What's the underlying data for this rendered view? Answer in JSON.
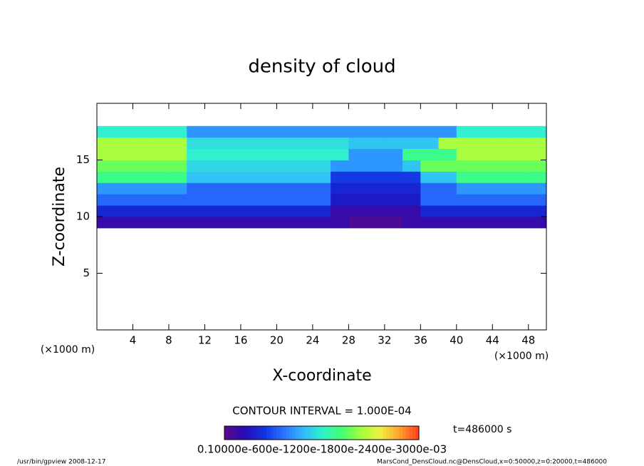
{
  "chart_data": {
    "type": "heatmap",
    "title": "density of cloud",
    "x_label": "X-coordinate",
    "y_label": "Z-coordinate",
    "x_unit": "(×1000 m)",
    "y_unit": "(×1000 m)",
    "contour_interval": "CONTOUR INTERVAL = 1.000E-04",
    "time_label": "t=486000 s",
    "footer_left": "/usr/bin/gpview   2008-12-17",
    "footer_right": "MarsCond_DensCloud.nc@DensCloud,x=0:50000,z=0:20000,t=486000",
    "colorbar_label": "0.10000e-600e-1200e-1800e-2400e-3000e-03",
    "xlim": [
      0,
      50
    ],
    "xticks": [
      4,
      8,
      12,
      16,
      20,
      24,
      28,
      32,
      36,
      40,
      44,
      48
    ],
    "ylim": [
      0,
      20
    ],
    "yticks": [
      5,
      10,
      15
    ],
    "clim": [
      0,
      0.0007
    ],
    "colors": [
      "#5a0a8c",
      "#2a0ab4",
      "#1030e0",
      "#2a70ff",
      "#30b4ff",
      "#30f0d0",
      "#40ff70",
      "#a0ff40",
      "#f0f040",
      "#ffa030",
      "#ff4020"
    ],
    "x_edges": [
      0,
      2,
      4,
      6,
      8,
      10,
      12,
      14,
      16,
      18,
      20,
      22,
      24,
      26,
      28,
      30,
      32,
      34,
      36,
      38,
      40,
      42,
      44,
      46,
      48,
      50
    ],
    "z_edges": [
      9,
      10,
      11,
      12,
      13,
      14,
      15,
      16,
      17,
      18
    ],
    "values": [
      [
        5e-05,
        5e-05,
        5e-05,
        5e-05,
        5e-05,
        5e-05,
        5e-05,
        5e-05,
        5e-05,
        5e-05,
        5e-05,
        5e-05,
        5e-05,
        5e-05,
        2e-05,
        2e-05,
        2e-05,
        5e-05,
        5e-05,
        5e-05,
        5e-05,
        5e-05,
        5e-05,
        5e-05,
        5e-05
      ],
      [
        0.00012,
        0.00012,
        0.00012,
        0.00012,
        0.00012,
        0.00012,
        0.00012,
        0.00012,
        0.00012,
        0.00012,
        0.00012,
        0.00012,
        0.00012,
        5e-05,
        5e-05,
        5e-05,
        5e-05,
        5e-05,
        0.00012,
        0.00012,
        0.00012,
        0.00012,
        0.00012,
        0.00012,
        0.00012
      ],
      [
        0.0002,
        0.0002,
        0.0002,
        0.0002,
        0.0002,
        0.0002,
        0.0002,
        0.0002,
        0.0002,
        0.0002,
        0.0002,
        0.0002,
        0.0002,
        0.0001,
        0.0001,
        0.0001,
        0.0001,
        0.0001,
        0.0002,
        0.0002,
        0.0002,
        0.0002,
        0.0002,
        0.0002,
        0.0002
      ],
      [
        0.00025,
        0.00025,
        0.00025,
        0.00025,
        0.00025,
        0.0002,
        0.0002,
        0.0002,
        0.0002,
        0.0002,
        0.0002,
        0.0002,
        0.0002,
        0.00012,
        0.00012,
        0.00012,
        0.00012,
        0.00012,
        0.0002,
        0.0002,
        0.00025,
        0.00025,
        0.00025,
        0.00025,
        0.00025
      ],
      [
        0.0004,
        0.0004,
        0.0004,
        0.0004,
        0.0004,
        0.0003,
        0.0003,
        0.0003,
        0.0003,
        0.0003,
        0.0003,
        0.0003,
        0.0003,
        0.00015,
        0.00015,
        0.00015,
        0.00015,
        0.00015,
        0.0003,
        0.0003,
        0.0004,
        0.0004,
        0.0004,
        0.0004,
        0.0004
      ],
      [
        0.00045,
        0.00045,
        0.00045,
        0.00045,
        0.00045,
        0.00032,
        0.00032,
        0.00032,
        0.00032,
        0.00032,
        0.00032,
        0.00032,
        0.00032,
        0.00025,
        0.00025,
        0.00025,
        0.00025,
        0.0003,
        0.00045,
        0.00045,
        0.00045,
        0.00045,
        0.00045,
        0.00045,
        0.00045
      ],
      [
        0.0005,
        0.0005,
        0.0005,
        0.0005,
        0.0005,
        0.00035,
        0.00035,
        0.00035,
        0.00035,
        0.00035,
        0.00035,
        0.00035,
        0.00035,
        0.00035,
        0.00025,
        0.00025,
        0.00025,
        0.0004,
        0.0004,
        0.0004,
        0.0005,
        0.0005,
        0.0005,
        0.0005,
        0.0005
      ],
      [
        0.0005,
        0.0005,
        0.0005,
        0.0005,
        0.0005,
        0.00033,
        0.00033,
        0.00033,
        0.00033,
        0.00033,
        0.00033,
        0.00033,
        0.00033,
        0.00033,
        0.0003,
        0.0003,
        0.0003,
        0.0003,
        0.0003,
        0.0005,
        0.0005,
        0.0005,
        0.0005,
        0.0005,
        0.0005
      ],
      [
        0.00035,
        0.00035,
        0.00035,
        0.00035,
        0.00035,
        0.00025,
        0.00025,
        0.00025,
        0.00025,
        0.00025,
        0.00025,
        0.00025,
        0.00025,
        0.00025,
        0.00025,
        0.00025,
        0.00025,
        0.00025,
        0.00025,
        0.00025,
        0.00035,
        0.00035,
        0.00035,
        0.00035,
        0.00035
      ]
    ]
  }
}
